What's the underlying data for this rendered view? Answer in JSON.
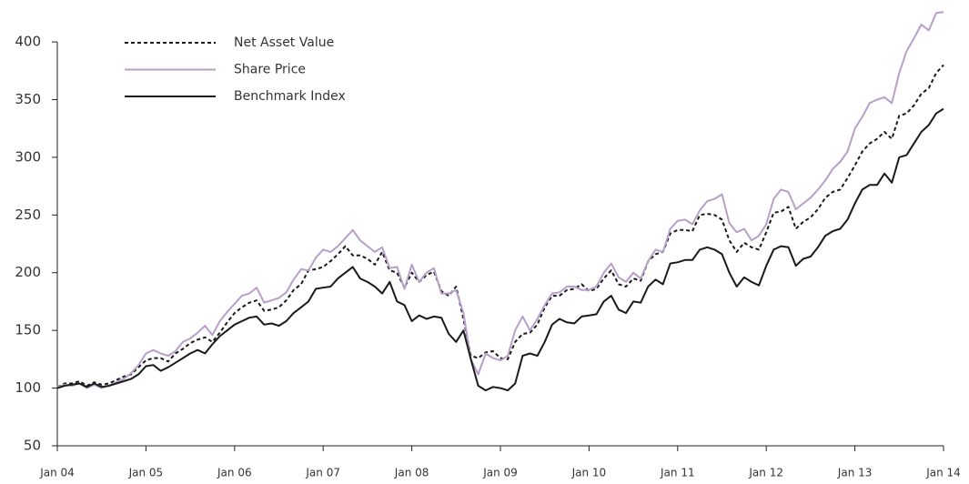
{
  "chart_data": {
    "type": "line",
    "categories": [
      "Jan 04",
      null,
      null,
      null,
      null,
      null,
      null,
      null,
      null,
      null,
      null,
      null,
      "Jan 05",
      null,
      null,
      null,
      null,
      null,
      null,
      null,
      null,
      null,
      null,
      null,
      "Jan 06",
      null,
      null,
      null,
      null,
      null,
      null,
      null,
      null,
      null,
      null,
      null,
      "Jan 07",
      null,
      null,
      null,
      null,
      null,
      null,
      null,
      null,
      null,
      null,
      null,
      "Jan 08",
      null,
      null,
      null,
      null,
      null,
      null,
      null,
      null,
      null,
      null,
      null,
      "Jan 09",
      null,
      null,
      null,
      null,
      null,
      null,
      null,
      null,
      null,
      null,
      null,
      "Jan 10",
      null,
      null,
      null,
      null,
      null,
      null,
      null,
      null,
      null,
      null,
      null,
      "Jan 11",
      null,
      null,
      null,
      null,
      null,
      null,
      null,
      null,
      null,
      null,
      null,
      "Jan 12",
      null,
      null,
      null,
      null,
      null,
      null,
      null,
      null,
      null,
      null,
      null,
      "Jan 13",
      null,
      null,
      null,
      null,
      null,
      null,
      null,
      null,
      null,
      null,
      null,
      "Jan 14"
    ],
    "series": [
      {
        "name": "Net Asset Value",
        "color": "#1a1a1a",
        "style": "dashed",
        "values": [
          101,
          104,
          104,
          106,
          102,
          105,
          103,
          104,
          107,
          110,
          112,
          118,
          124,
          126,
          126,
          123,
          130,
          134,
          139,
          142,
          144,
          140,
          148,
          157,
          165,
          170,
          174,
          176,
          167,
          168,
          170,
          176,
          185,
          190,
          202,
          203,
          205,
          210,
          216,
          223,
          215,
          215,
          212,
          207,
          218,
          202,
          200,
          187,
          200,
          192,
          198,
          201,
          184,
          180,
          188,
          160,
          128,
          126,
          131,
          132,
          126,
          125,
          140,
          147,
          148,
          155,
          170,
          180,
          180,
          185,
          186,
          190,
          184,
          186,
          195,
          202,
          190,
          188,
          195,
          193,
          210,
          216,
          218,
          234,
          237,
          237,
          236,
          250,
          251,
          250,
          246,
          228,
          218,
          226,
          222,
          220,
          235,
          252,
          253,
          257,
          238,
          244,
          248,
          255,
          265,
          270,
          272,
          282,
          293,
          305,
          312,
          316,
          322,
          316,
          336,
          338,
          345,
          355,
          360,
          373,
          380
        ]
      },
      {
        "name": "Share Price",
        "color": "#b79fca",
        "style": "solid",
        "values": [
          101,
          103,
          102,
          104,
          100,
          103,
          100,
          102,
          105,
          108,
          113,
          120,
          130,
          133,
          130,
          128,
          132,
          140,
          143,
          148,
          154,
          146,
          158,
          166,
          173,
          180,
          182,
          187,
          174,
          176,
          178,
          183,
          194,
          203,
          202,
          213,
          220,
          218,
          223,
          230,
          237,
          228,
          223,
          218,
          222,
          204,
          205,
          186,
          207,
          192,
          200,
          204,
          182,
          182,
          185,
          165,
          125,
          112,
          130,
          126,
          124,
          128,
          150,
          162,
          150,
          160,
          172,
          182,
          183,
          188,
          188,
          185,
          185,
          188,
          200,
          208,
          196,
          192,
          200,
          195,
          210,
          220,
          218,
          238,
          245,
          246,
          242,
          254,
          262,
          264,
          268,
          243,
          235,
          238,
          228,
          232,
          242,
          264,
          272,
          270,
          255,
          260,
          265,
          272,
          280,
          290,
          296,
          305,
          325,
          335,
          347,
          350,
          352,
          347,
          373,
          392,
          403,
          415,
          410,
          425,
          426
        ]
      },
      {
        "name": "Benchmark Index",
        "color": "#1a1a1a",
        "style": "solid",
        "values": [
          100,
          102,
          103,
          104,
          101,
          104,
          101,
          102,
          104,
          106,
          108,
          112,
          119,
          120,
          115,
          118,
          122,
          126,
          130,
          133,
          130,
          138,
          145,
          150,
          155,
          158,
          161,
          162,
          155,
          156,
          154,
          158,
          165,
          170,
          175,
          186,
          187,
          188,
          195,
          200,
          205,
          195,
          192,
          188,
          182,
          192,
          175,
          172,
          158,
          163,
          160,
          162,
          161,
          147,
          140,
          150,
          125,
          102,
          98,
          101,
          100,
          98,
          104,
          128,
          130,
          128,
          140,
          155,
          160,
          157,
          156,
          162,
          163,
          164,
          175,
          180,
          168,
          165,
          175,
          174,
          188,
          194,
          190,
          208,
          209,
          211,
          211,
          220,
          222,
          220,
          216,
          200,
          188,
          196,
          192,
          189,
          206,
          220,
          223,
          222,
          206,
          212,
          214,
          222,
          232,
          236,
          238,
          246,
          260,
          272,
          276,
          276,
          286,
          278,
          300,
          302,
          312,
          322,
          328,
          338,
          342
        ]
      }
    ],
    "ylim": [
      50,
      430
    ],
    "yticks": [
      50,
      100,
      150,
      200,
      250,
      300,
      350,
      400
    ],
    "legend": "upper-left"
  }
}
